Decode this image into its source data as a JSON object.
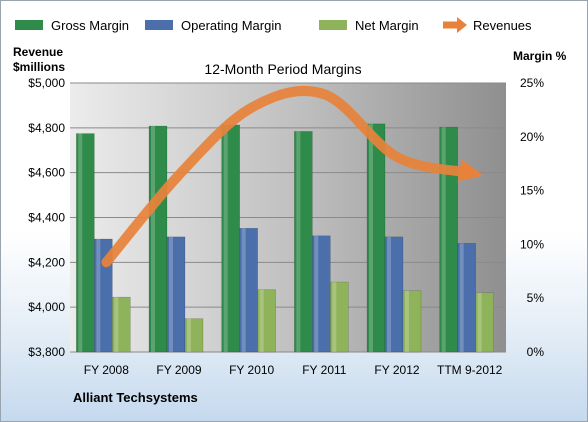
{
  "company": "Alliant Techsystems",
  "chart_data": {
    "type": "bar",
    "title": "12-Month Period Margins",
    "left_axis_label_line1": "Revenue",
    "left_axis_label_line2": "$millions",
    "right_axis_label": "Margin %",
    "categories": [
      "FY 2008",
      "FY 2009",
      "FY 2010",
      "FY 2011",
      "FY 2012",
      "TTM 9-2012"
    ],
    "left_axis": {
      "min": 3800,
      "max": 5000,
      "ticks": [
        "$3,800",
        "$4,000",
        "$4,200",
        "$4,400",
        "$4,600",
        "$4,800",
        "$5,000"
      ]
    },
    "right_axis": {
      "min": 0,
      "max": 25,
      "ticks": [
        "0%",
        "5%",
        "10%",
        "15%",
        "20%",
        "25%"
      ]
    },
    "series": [
      {
        "name": "Gross Margin",
        "axis": "right",
        "color": "#2e8b4a",
        "values": [
          20.3,
          21.0,
          21.1,
          20.5,
          21.2,
          20.9
        ]
      },
      {
        "name": "Operating Margin",
        "axis": "right",
        "color": "#4a6fab",
        "values": [
          10.5,
          10.7,
          11.5,
          10.8,
          10.7,
          10.1
        ]
      },
      {
        "name": "Net Margin",
        "axis": "right",
        "color": "#8fb35a",
        "values": [
          5.1,
          3.1,
          5.8,
          6.5,
          5.7,
          5.5
        ]
      },
      {
        "name": "Revenues",
        "axis": "left",
        "type": "line",
        "color": "#e8823a",
        "values": [
          4200,
          4590,
          4890,
          4950,
          4670,
          4600
        ]
      }
    ],
    "legend_position": "top",
    "grid": true
  }
}
